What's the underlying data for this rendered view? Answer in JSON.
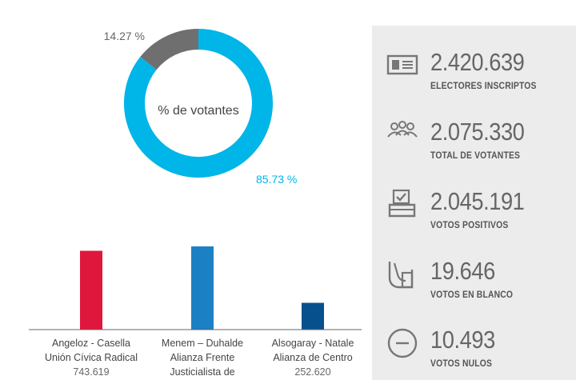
{
  "colors": {
    "voters": "#00b5e8",
    "non_voters": "#6f6f6f",
    "bar_radical": "#e0173d",
    "bar_justicialista": "#1c80c4",
    "bar_centro": "#07508e",
    "panel_bg": "#ececec",
    "icon": "#777777"
  },
  "chart_data": [
    {
      "type": "pie",
      "title": "% de votantes",
      "labels": [
        "85.73 %",
        "14.27 %"
      ],
      "values": [
        85.73,
        14.27
      ]
    },
    {
      "type": "bar",
      "categories": [
        [
          "Angeloz - Casella",
          "Unión Cívica Radical",
          "743.619"
        ],
        [
          "Menem – Duhalde",
          "Alianza Frente",
          "Justicialista de"
        ],
        [
          "Alsogaray - Natale",
          "Alianza de Centro",
          "252.620"
        ]
      ],
      "values": [
        743619,
        785000,
        252620
      ]
    }
  ],
  "stats": [
    {
      "icon": "id-card-icon",
      "number": "2.420.639",
      "label": "ELECTORES INSCRIPTOS"
    },
    {
      "icon": "people-icon",
      "number": "2.075.330",
      "label": "TOTAL DE VOTANTES"
    },
    {
      "icon": "ballot-box-icon",
      "number": "2.045.191",
      "label": "VOTOS POSITIVOS"
    },
    {
      "icon": "blank-vote-icon",
      "number": "19.646",
      "label": "VOTOS EN BLANCO"
    },
    {
      "icon": "minus-circle-icon",
      "number": "10.493",
      "label": "VOTOS NULOS"
    }
  ]
}
